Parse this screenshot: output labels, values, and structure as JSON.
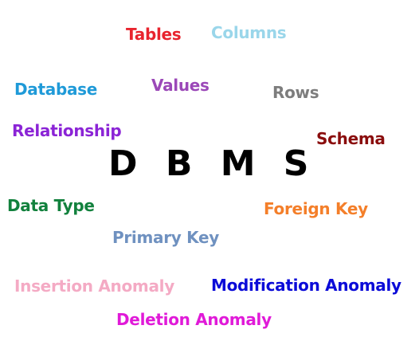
{
  "colors": {
    "background": "#ffffff"
  },
  "words": {
    "tables": {
      "text": "Tables",
      "color": "#e8242e"
    },
    "columns": {
      "text": "Columns",
      "color": "#9ad6ea"
    },
    "database": {
      "text": "Database",
      "color": "#1f9ad8"
    },
    "values": {
      "text": "Values",
      "color": "#9b48b8"
    },
    "rows": {
      "text": "Rows",
      "color": "#7d7d7d"
    },
    "relationship": {
      "text": "Relationship",
      "color": "#8b24d6"
    },
    "schema": {
      "text": "Schema",
      "color": "#8a0d0d"
    },
    "dbms": {
      "text": "D B M S",
      "color": "#000000"
    },
    "data_type": {
      "text": "Data Type",
      "color": "#12813d"
    },
    "foreign_key": {
      "text": "Foreign Key",
      "color": "#f47f2a"
    },
    "primary_key": {
      "text": "Primary Key",
      "color": "#6f91c0"
    },
    "insertion_anomaly": {
      "text": "Insertion Anomaly",
      "color": "#f4aac4"
    },
    "modification_anomaly": {
      "text": "Modification Anomaly",
      "color": "#0b0bd8"
    },
    "deletion_anomaly": {
      "text": "Deletion Anomaly",
      "color": "#e01ad8"
    }
  }
}
